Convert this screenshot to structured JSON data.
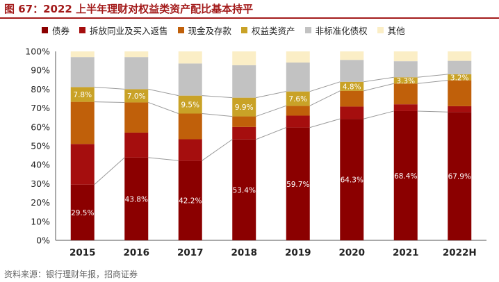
{
  "title": "图 67：2022 上半年理财对权益类资产配比基本持平",
  "source": "资料来源：银行理财年报，招商证券",
  "chart_data": {
    "type": "bar",
    "stacked": true,
    "categories": [
      "2015",
      "2016",
      "2017",
      "2018",
      "2019",
      "2020",
      "2021",
      "2022H"
    ],
    "ylim": [
      0,
      100
    ],
    "yticks": [
      "0%",
      "10%",
      "20%",
      "30%",
      "40%",
      "50%",
      "60%",
      "70%",
      "80%",
      "90%",
      "100%"
    ],
    "legend_position": "top",
    "grid": false,
    "series": [
      {
        "name": "债券",
        "color": "#8b0000",
        "values": [
          29.5,
          43.8,
          42.2,
          53.4,
          59.7,
          64.3,
          68.4,
          67.9
        ]
      },
      {
        "name": "拆放同业及买入返售",
        "color": "#a50e0e",
        "values": [
          21.5,
          13.2,
          11.3,
          6.6,
          6.3,
          6.5,
          3.6,
          3.1
        ]
      },
      {
        "name": "现金及存款",
        "color": "#c0600a",
        "values": [
          22.3,
          16.0,
          13.6,
          5.6,
          5.2,
          8.3,
          11.0,
          13.7
        ]
      },
      {
        "name": "权益类资产",
        "color": "#c9a227",
        "values": [
          7.8,
          7.0,
          9.5,
          9.9,
          7.6,
          4.8,
          3.3,
          3.2
        ]
      },
      {
        "name": "非标准化债权",
        "color": "#c2c2c2",
        "values": [
          15.9,
          17.0,
          17.0,
          17.2,
          15.3,
          11.6,
          8.5,
          7.1
        ]
      },
      {
        "name": "其他",
        "color": "#fbeec6",
        "values": [
          3.0,
          3.0,
          6.4,
          7.3,
          5.9,
          4.5,
          5.2,
          5.0
        ]
      }
    ],
    "data_labels": {
      "债券": [
        "29.5%",
        "43.8%",
        "42.2%",
        "53.4%",
        "59.7%",
        "64.3%",
        "68.4%",
        "67.9%"
      ],
      "权益类资产": [
        "7.8%",
        "7.0%",
        "9.5%",
        "9.9%",
        "7.6%",
        "4.8%",
        "3.3%",
        "3.2%"
      ]
    }
  }
}
